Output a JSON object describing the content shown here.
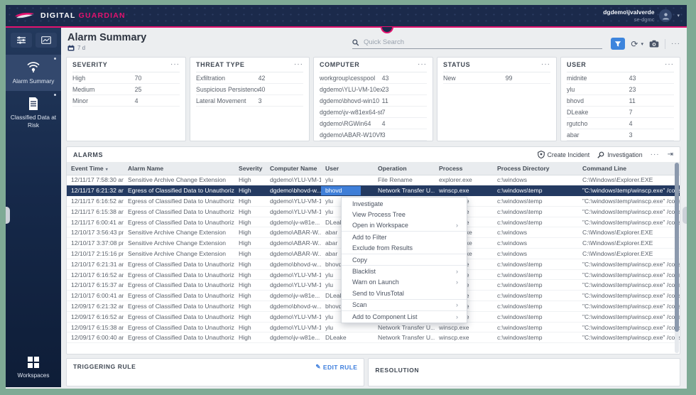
{
  "icons": {
    "refresh": "⟳",
    "caret": "▾",
    "ellipsis": "···",
    "chevron": "›",
    "collapse": "⇥",
    "pencil": "✎",
    "sort": "▾"
  },
  "header": {
    "brand_primary": "DIGITAL",
    "brand_secondary": "GUARDIAN",
    "user_name": "dgdemo\\jvalverde",
    "server_name": "se-dgmc"
  },
  "sidebar": {
    "items": [
      {
        "label": "Alarm Summary"
      },
      {
        "label": "Classified Data at Risk"
      }
    ],
    "workspaces_label": "Workspaces"
  },
  "page": {
    "title": "Alarm Summary",
    "time_range": "7 d",
    "search_placeholder": "Quick Search"
  },
  "cards": [
    {
      "title": "SEVERITY",
      "rows": [
        [
          "High",
          "70"
        ],
        [
          "Medium",
          "25"
        ],
        [
          "Minor",
          "4"
        ]
      ]
    },
    {
      "title": "THREAT TYPE",
      "rows": [
        [
          "Exfiltration",
          "42"
        ],
        [
          "Suspicious Persistence",
          "40"
        ],
        [
          "Lateral Movement",
          "3"
        ]
      ]
    },
    {
      "title": "COMPUTER",
      "rows": [
        [
          "workgroup\\cesspool",
          "43"
        ],
        [
          "dgdemo\\YLU-VM-10ex...",
          "23"
        ],
        [
          "dgdemo\\bhovd-win10",
          "11"
        ],
        [
          "dgdemo\\jv-w81ex64-std",
          "7"
        ],
        [
          "dgdemo\\RGWin64",
          "4"
        ],
        [
          "dgdemo\\ABAR-W10VM1",
          "3"
        ]
      ]
    },
    {
      "title": "STATUS",
      "rows": [
        [
          "New",
          "99"
        ]
      ]
    },
    {
      "title": "USER",
      "rows": [
        [
          "midnite",
          "43"
        ],
        [
          "ylu",
          "23"
        ],
        [
          "bhovd",
          "11"
        ],
        [
          "DLeake",
          "7"
        ],
        [
          "rgutcho",
          "4"
        ],
        [
          "abar",
          "3"
        ]
      ]
    }
  ],
  "alarms": {
    "title": "ALARMS",
    "actions": [
      "Create Incident",
      "Investigation"
    ],
    "columns": [
      "Event Time",
      "Alarm Name",
      "Severity",
      "Computer Name",
      "User",
      "Operation",
      "Process",
      "Process Directory",
      "Command Line"
    ],
    "selected_row": 1,
    "rows": [
      [
        "12/11/17 7:58:30 am",
        "Sensitive Archive Change Extension",
        "High",
        "dgdemo\\YLU-VM-1...",
        "ylu",
        "File Rename",
        "explorer.exe",
        "c:\\windows",
        "C:\\Windows\\Explorer.EXE"
      ],
      [
        "12/11/17 6:21:32 am",
        "Egress of Classified Data to Unauthorized Site",
        "High",
        "dgdemo\\bhovd-w...",
        "bhovd",
        "Network Transfer U...",
        "winscp.exe",
        "c:\\windows\\temp",
        "\"C:\\windows\\temp\\winscp.exe\" /console="
      ],
      [
        "12/11/17 6:16:52 am",
        "Egress of Classified Data to Unauthorized Site",
        "High",
        "dgdemo\\YLU-VM-1...",
        "ylu",
        "Network Transfer U...",
        "winscp.exe",
        "c:\\windows\\temp",
        "\"C:\\windows\\temp\\winscp.exe\" /console="
      ],
      [
        "12/11/17 6:15:38 am",
        "Egress of Classified Data to Unauthorized Site",
        "High",
        "dgdemo\\YLU-VM-1...",
        "ylu",
        "Network Transfer U...",
        "winscp.exe",
        "c:\\windows\\temp",
        "\"C:\\windows\\temp\\winscp.exe\" /console="
      ],
      [
        "12/11/17 6:00:41 am",
        "Egress of Classified Data to Unauthorized Site",
        "High",
        "dgdemo\\jv-w81e...",
        "DLeake",
        "Network Transfer U...",
        "winscp.exe",
        "c:\\windows\\temp",
        "\"C:\\windows\\temp\\winscp.exe\" /console="
      ],
      [
        "12/10/17 3:56:43 pm",
        "Sensitive Archive Change Extension",
        "High",
        "dgdemo\\ABAR-W...",
        "abar",
        "File Rename",
        "explorer.exe",
        "c:\\windows",
        "C:\\Windows\\Explorer.EXE"
      ],
      [
        "12/10/17 3:37:08 pm",
        "Sensitive Archive Change Extension",
        "High",
        "dgdemo\\ABAR-W...",
        "abar",
        "File Rename",
        "explorer.exe",
        "c:\\windows",
        "C:\\Windows\\Explorer.EXE"
      ],
      [
        "12/10/17 2:15:16 pm",
        "Sensitive Archive Change Extension",
        "High",
        "dgdemo\\ABAR-W...",
        "abar",
        "File Rename",
        "explorer.exe",
        "c:\\windows",
        "C:\\Windows\\Explorer.EXE"
      ],
      [
        "12/10/17 6:21:31 am",
        "Egress of Classified Data to Unauthorized Site",
        "High",
        "dgdemo\\bhovd-w...",
        "bhovd",
        "Network Transfer U...",
        "winscp.exe",
        "c:\\windows\\temp",
        "\"C:\\windows\\temp\\winscp.exe\" /console="
      ],
      [
        "12/10/17 6:16:52 am",
        "Egress of Classified Data to Unauthorized Site",
        "High",
        "dgdemo\\YLU-VM-1...",
        "ylu",
        "Network Transfer U...",
        "winscp.exe",
        "c:\\windows\\temp",
        "\"C:\\windows\\temp\\winscp.exe\" /console="
      ],
      [
        "12/10/17 6:15:37 am",
        "Egress of Classified Data to Unauthorized Site",
        "High",
        "dgdemo\\YLU-VM-1...",
        "ylu",
        "Network Transfer U...",
        "winscp.exe",
        "c:\\windows\\temp",
        "\"C:\\windows\\temp\\winscp.exe\" /console="
      ],
      [
        "12/10/17 6:00:41 am",
        "Egress of Classified Data to Unauthorized Site",
        "High",
        "dgdemo\\jv-w81e...",
        "DLeake",
        "Network Transfer U...",
        "winscp.exe",
        "c:\\windows\\temp",
        "\"C:\\windows\\temp\\winscp.exe\" /console="
      ],
      [
        "12/09/17 6:21:32 am",
        "Egress of Classified Data to Unauthorized Site",
        "High",
        "dgdemo\\bhovd-w...",
        "bhovd",
        "Network Transfer U...",
        "winscp.exe",
        "c:\\windows\\temp",
        "\"C:\\windows\\temp\\winscp.exe\" /console="
      ],
      [
        "12/09/17 6:16:52 am",
        "Egress of Classified Data to Unauthorized Site",
        "High",
        "dgdemo\\YLU-VM-1...",
        "ylu",
        "Network Transfer U...",
        "winscp.exe",
        "c:\\windows\\temp",
        "\"C:\\windows\\temp\\winscp.exe\" /console="
      ],
      [
        "12/09/17 6:15:38 am",
        "Egress of Classified Data to Unauthorized Site",
        "High",
        "dgdemo\\YLU-VM-1...",
        "ylu",
        "Network Transfer U...",
        "winscp.exe",
        "c:\\windows\\temp",
        "\"C:\\windows\\temp\\winscp.exe\" /console="
      ],
      [
        "12/09/17 6:00:40 am",
        "Egress of Classified Data to Unauthorized Site",
        "High",
        "dgdemo\\jv-w81e...",
        "DLeake",
        "Network Transfer U...",
        "winscp.exe",
        "c:\\windows\\temp",
        "\"C:\\windows\\temp\\winscp.exe\" /console="
      ]
    ]
  },
  "context_menu": {
    "groups": [
      [
        {
          "label": "Investigate"
        },
        {
          "label": "View Process Tree"
        },
        {
          "label": "Open in Workspace",
          "submenu": true
        }
      ],
      [
        {
          "label": "Add to Filter"
        },
        {
          "label": "Exclude from Results"
        }
      ],
      [
        {
          "label": "Copy"
        }
      ],
      [
        {
          "label": "Blacklist",
          "submenu": true
        },
        {
          "label": "Warn on Launch",
          "submenu": true
        },
        {
          "label": "Send to VirusTotal"
        }
      ],
      [
        {
          "label": "Scan",
          "submenu": true
        }
      ],
      [
        {
          "label": "Add to Component List",
          "submenu": true
        }
      ]
    ]
  },
  "bottom_panels": {
    "triggering_rule_title": "TRIGGERING RULE",
    "edit_rule_label": "EDIT RULE",
    "resolution_title": "RESOLUTION"
  },
  "colors": {
    "brand_pink": "#e3126e",
    "header_navy": "#1b2a4b",
    "accent_blue": "#3d85dd",
    "selected_row_navy": "#243a61",
    "selected_user_chip": "#3f7fd9",
    "frame_green": "#7faa95"
  }
}
